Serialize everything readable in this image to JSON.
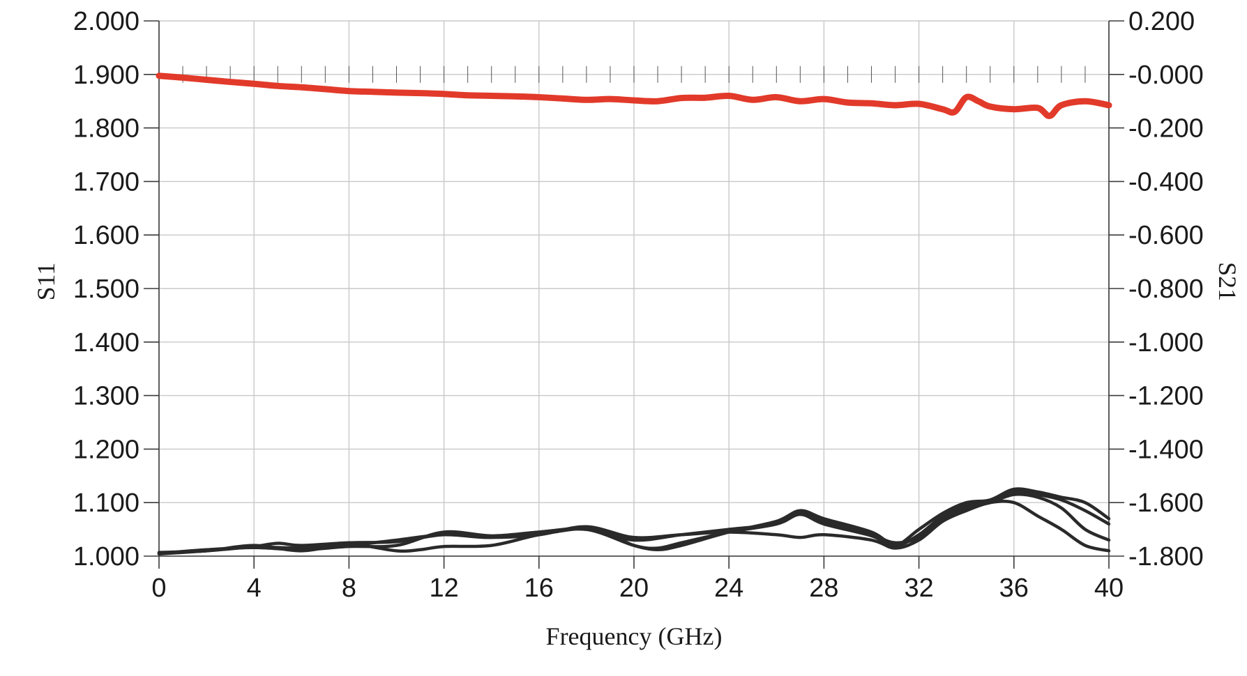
{
  "chart_data": {
    "type": "line",
    "xlabel": "Frequency (GHz)",
    "ylabel": "S11",
    "y2label": "S21",
    "xlim": [
      0,
      40
    ],
    "ylim": [
      1.0,
      2.0
    ],
    "y2lim": [
      -1.8,
      0.2
    ],
    "x_ticks": [
      "0",
      "4",
      "8",
      "12",
      "16",
      "20",
      "24",
      "28",
      "32",
      "36",
      "40"
    ],
    "y_ticks": [
      "1.000",
      "1.100",
      "1.200",
      "1.300",
      "1.400",
      "1.500",
      "1.600",
      "1.700",
      "1.800",
      "1.900",
      "2.000"
    ],
    "y2_ticks": [
      "-1.800",
      "-1.600",
      "-1.400",
      "-1.200",
      "-1.000",
      "-0.800",
      "-0.600",
      "-0.400",
      "-0.200",
      "-0.000",
      "0.200"
    ],
    "grid": true,
    "colors": {
      "s21": "#e23a2a",
      "s11": "#2a2a2a"
    },
    "series": [
      {
        "axis": "right",
        "color": "#e23a2a",
        "x": [
          0,
          1,
          2,
          3,
          4,
          5,
          6,
          7,
          8,
          9,
          10,
          11,
          12,
          13,
          14,
          15,
          16,
          17,
          18,
          19,
          20,
          21,
          22,
          23,
          24,
          25,
          26,
          27,
          28,
          29,
          30,
          31,
          32,
          33,
          33.5,
          34,
          34.5,
          35,
          36,
          37,
          37.5,
          38,
          39,
          40
        ],
        "values": [
          -0.005,
          -0.012,
          -0.02,
          -0.028,
          -0.035,
          -0.043,
          -0.048,
          -0.055,
          -0.062,
          -0.065,
          -0.068,
          -0.07,
          -0.073,
          -0.078,
          -0.08,
          -0.082,
          -0.085,
          -0.09,
          -0.095,
          -0.092,
          -0.097,
          -0.1,
          -0.088,
          -0.087,
          -0.08,
          -0.095,
          -0.085,
          -0.1,
          -0.092,
          -0.105,
          -0.108,
          -0.115,
          -0.11,
          -0.13,
          -0.14,
          -0.085,
          -0.1,
          -0.12,
          -0.13,
          -0.125,
          -0.155,
          -0.115,
          -0.1,
          -0.115
        ]
      },
      {
        "axis": "left",
        "color": "#2a2a2a",
        "x": [
          0,
          2,
          4,
          5,
          6,
          8,
          10,
          12,
          14,
          16,
          18,
          20,
          22,
          24,
          26,
          27,
          28,
          30,
          31,
          32,
          33,
          34,
          35,
          36,
          37,
          38,
          39,
          40
        ],
        "values": [
          1.006,
          1.01,
          1.018,
          1.024,
          1.02,
          1.025,
          1.027,
          1.04,
          1.035,
          1.04,
          1.055,
          1.035,
          1.04,
          1.045,
          1.04,
          1.035,
          1.04,
          1.03,
          1.015,
          1.03,
          1.065,
          1.085,
          1.1,
          1.1,
          1.075,
          1.05,
          1.02,
          1.01
        ]
      },
      {
        "axis": "left",
        "color": "#2a2a2a",
        "x": [
          0,
          2,
          4,
          6,
          8,
          10,
          12,
          14,
          16,
          18,
          20,
          21,
          22,
          24,
          26,
          27,
          28,
          30,
          31,
          32,
          33,
          34,
          35,
          36,
          37,
          38,
          39,
          40
        ],
        "values": [
          1.005,
          1.012,
          1.016,
          1.012,
          1.018,
          1.02,
          1.045,
          1.038,
          1.045,
          1.05,
          1.02,
          1.015,
          1.025,
          1.045,
          1.06,
          1.08,
          1.065,
          1.04,
          1.025,
          1.035,
          1.07,
          1.09,
          1.1,
          1.115,
          1.11,
          1.09,
          1.05,
          1.03
        ]
      },
      {
        "axis": "left",
        "color": "#2a2a2a",
        "x": [
          0,
          2,
          4,
          6,
          8,
          10,
          11,
          12,
          14,
          16,
          18,
          19,
          20,
          21,
          22,
          24,
          26,
          27,
          28,
          30,
          31,
          32,
          33,
          34,
          35,
          36,
          37,
          38,
          39,
          40
        ],
        "values": [
          1.007,
          1.01,
          1.02,
          1.01,
          1.022,
          1.01,
          1.012,
          1.018,
          1.02,
          1.04,
          1.052,
          1.04,
          1.02,
          1.012,
          1.02,
          1.045,
          1.065,
          1.085,
          1.07,
          1.045,
          1.02,
          1.04,
          1.075,
          1.095,
          1.105,
          1.12,
          1.115,
          1.105,
          1.085,
          1.06
        ]
      },
      {
        "axis": "left",
        "color": "#2a2a2a",
        "x": [
          0,
          2,
          4,
          6,
          8,
          10,
          12,
          14,
          16,
          18,
          20,
          22,
          24,
          26,
          27,
          28,
          30,
          31,
          32,
          33,
          34,
          35,
          36,
          37,
          38,
          39,
          40
        ],
        "values": [
          1.004,
          1.01,
          1.017,
          1.015,
          1.02,
          1.03,
          1.04,
          1.035,
          1.045,
          1.05,
          1.03,
          1.04,
          1.05,
          1.06,
          1.078,
          1.06,
          1.038,
          1.02,
          1.05,
          1.08,
          1.1,
          1.105,
          1.125,
          1.12,
          1.11,
          1.1,
          1.07
        ]
      }
    ]
  }
}
